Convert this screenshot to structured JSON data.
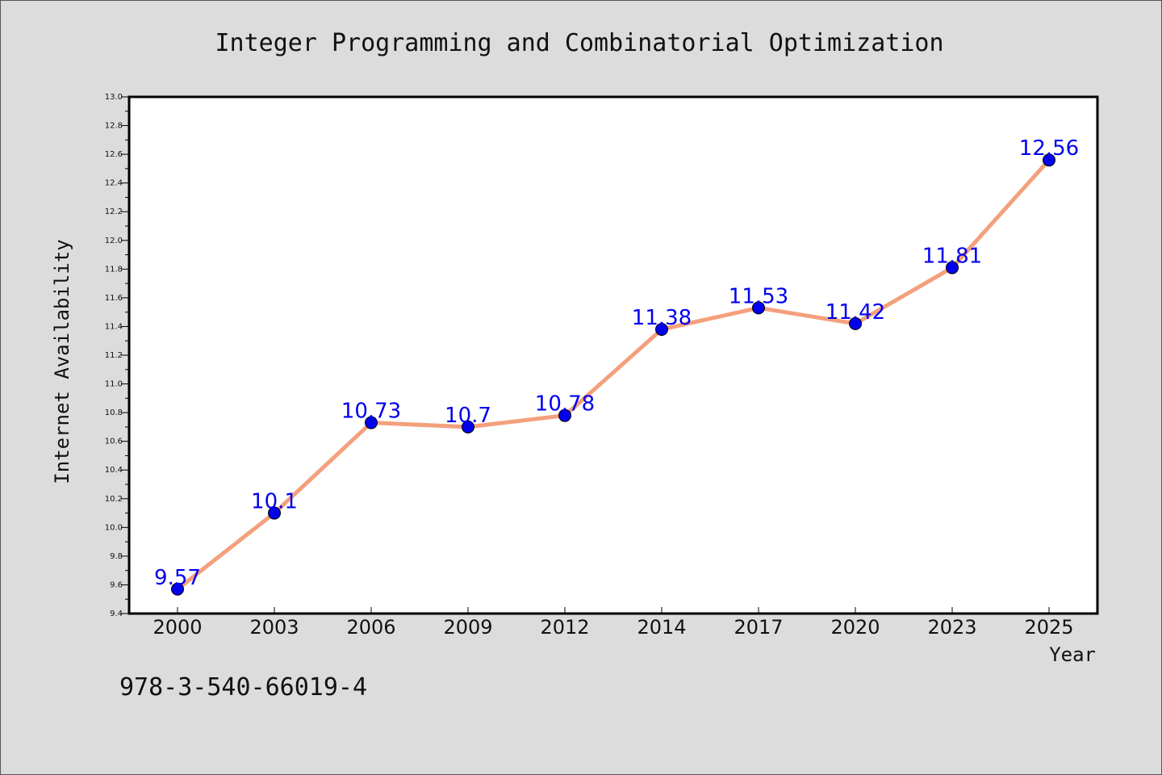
{
  "chart_data": {
    "type": "line",
    "title": "Integer Programming and Combinatorial Optimization",
    "xlabel": "Year",
    "ylabel": "Internet Availability",
    "categories": [
      "2000",
      "2003",
      "2006",
      "2009",
      "2012",
      "2014",
      "2017",
      "2020",
      "2023",
      "2025"
    ],
    "values": [
      9.57,
      10.1,
      10.73,
      10.7,
      10.78,
      11.38,
      11.53,
      11.42,
      11.81,
      12.56
    ],
    "data_labels": [
      "9.57",
      "10.1",
      "10.73",
      "10.7",
      "10.78",
      "11.38",
      "11.53",
      "11.42",
      "11.81",
      "12.56"
    ],
    "ylim": [
      9.4,
      13.0
    ],
    "yticks": [
      "9.4",
      "9.6",
      "9.8",
      "10.0",
      "10.2",
      "10.4",
      "10.6",
      "10.8",
      "11.0",
      "11.2",
      "11.4",
      "11.6",
      "11.8",
      "12.0",
      "12.2",
      "12.4",
      "12.6",
      "12.8",
      "13.0"
    ],
    "grid": false,
    "legend": "none",
    "colors": {
      "line": "#f4a07c",
      "marker": "#0000ee",
      "label": "#0000ee",
      "plot_bg": "#ffffff",
      "page_bg": "#dcdcdc"
    }
  },
  "footer": {
    "isbn": "978-3-540-66019-4"
  }
}
